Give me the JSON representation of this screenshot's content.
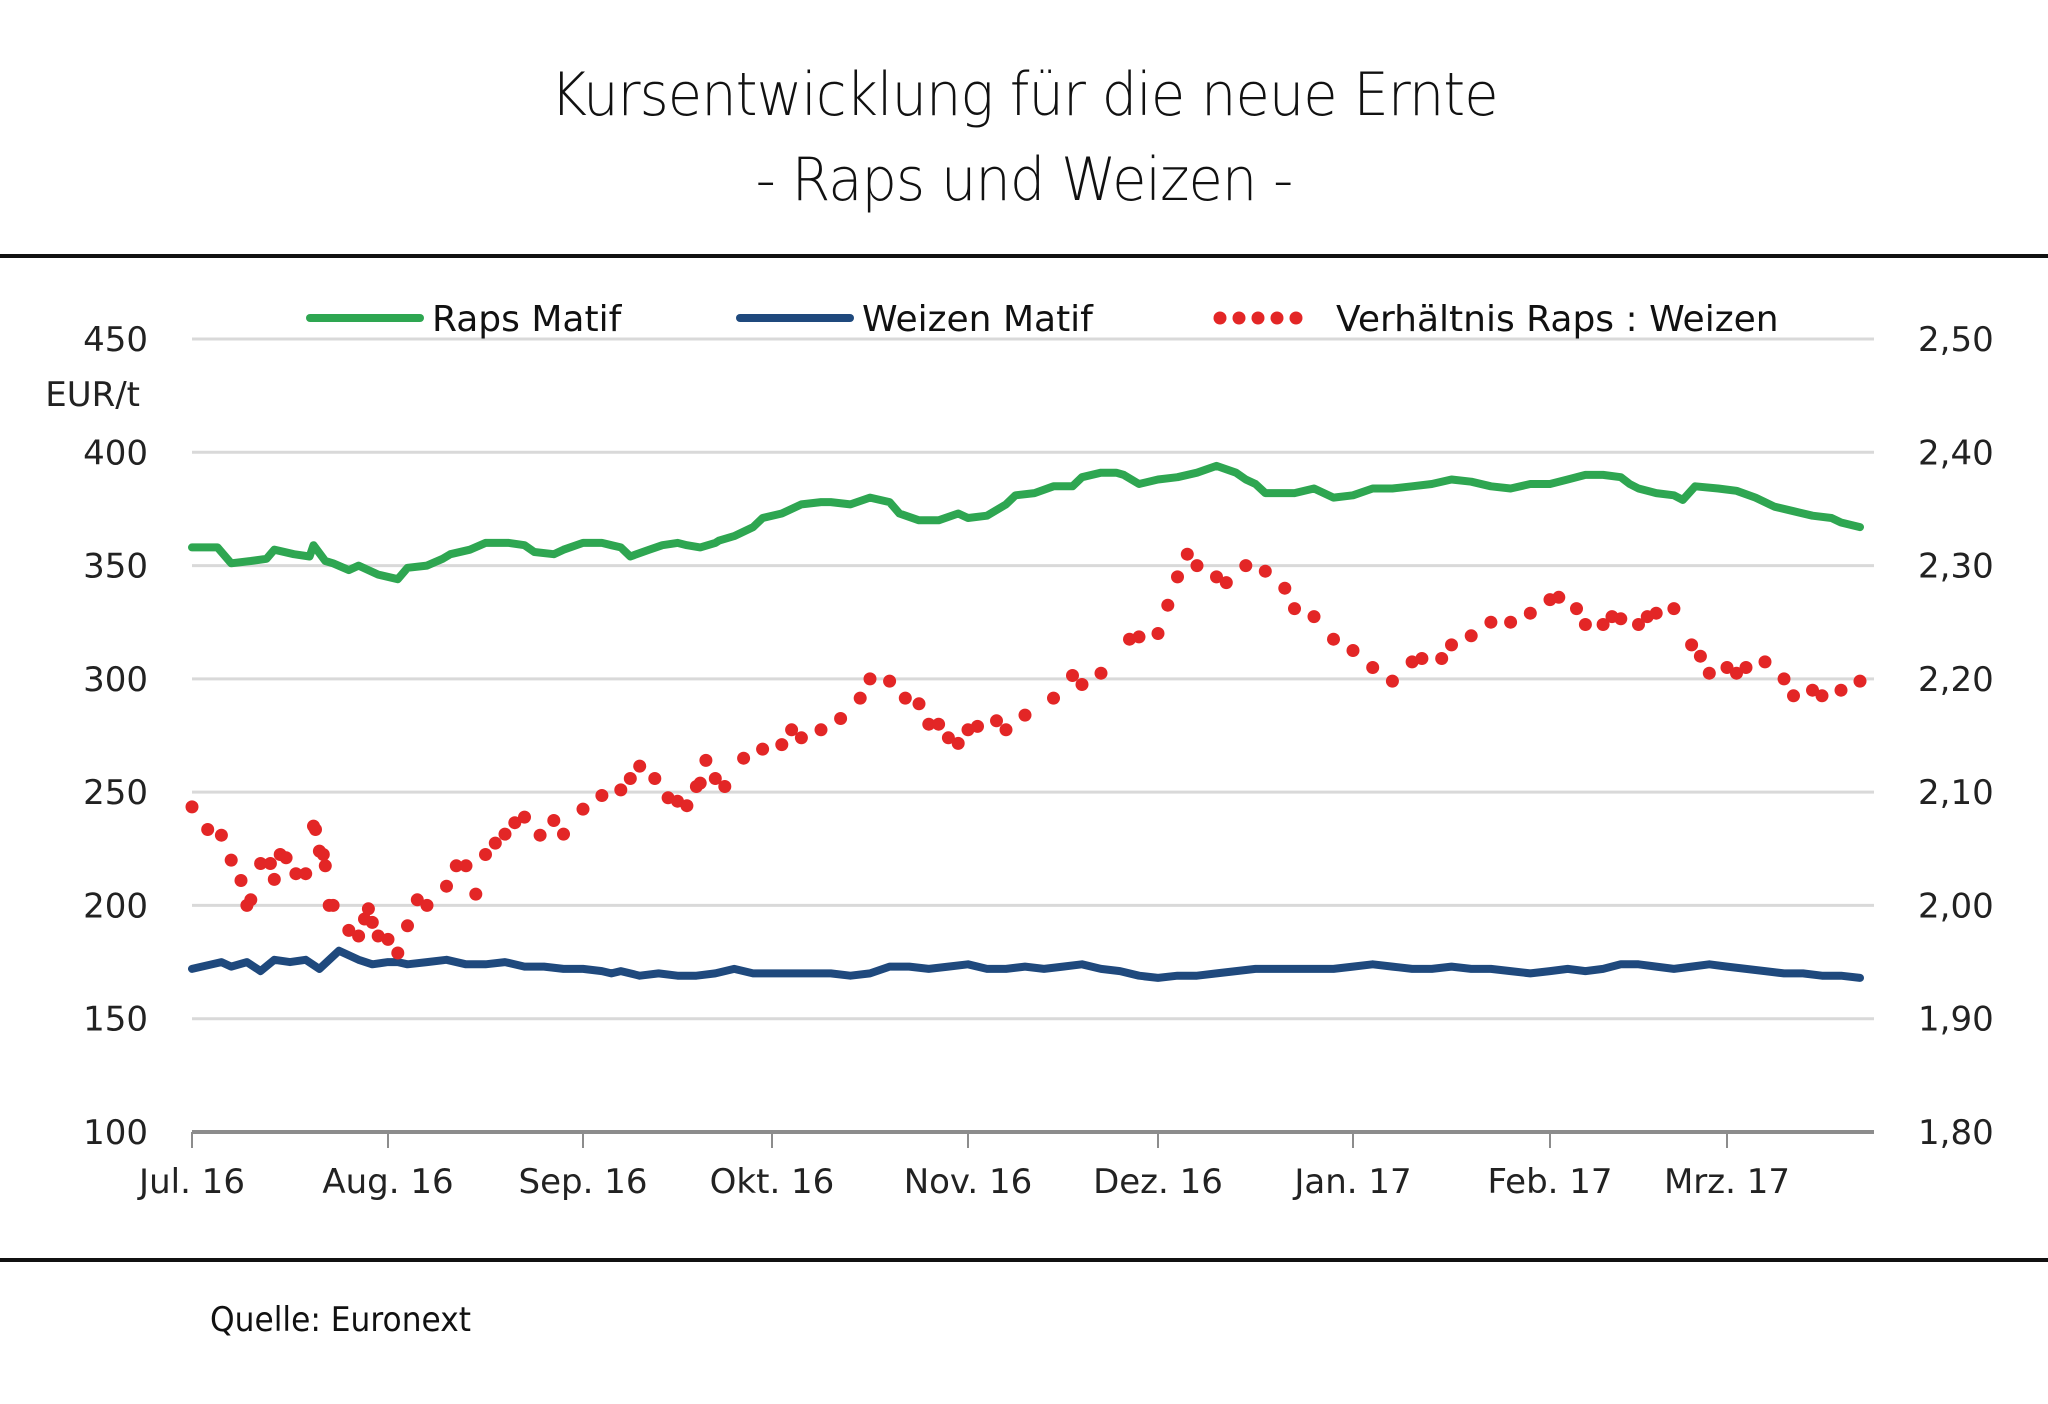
{
  "header": {
    "title_line1": "Kursentwicklung für die neue Ernte",
    "title_line2": "- Raps und Weizen -"
  },
  "footer": {
    "source": "Quelle: Euronext"
  },
  "colors": {
    "raps": "#2ea651",
    "weizen": "#1f497d",
    "ratio": "#e32626",
    "grid": "#d9d9d9",
    "axis": "#8c8c8c"
  },
  "chart_data": {
    "type": "line",
    "title": "Kursentwicklung für die neue Ernte - Raps und Weizen -",
    "ylabel": "EUR/t",
    "ylim": [
      100,
      450
    ],
    "yticks": [
      "100",
      "150",
      "200",
      "250",
      "300",
      "350",
      "400",
      "450"
    ],
    "y2lim": [
      1.8,
      2.5
    ],
    "y2ticks": [
      "1,80",
      "1,90",
      "2,00",
      "2,10",
      "2,20",
      "2,30",
      "2,40",
      "2,50"
    ],
    "grid": true,
    "legend_position": "top",
    "legend": [
      "Raps Matif",
      "Weizen Matif",
      "Verhältnis Raps : Weizen"
    ],
    "x_categories": [
      "Jul. 16",
      "Aug. 16",
      "Sep. 16",
      "Okt. 16",
      "Nov. 16",
      "Dez. 16",
      "Jan. 17",
      "Feb. 17",
      "Mrz. 17"
    ],
    "x_unit": "months since Jul. 16",
    "series": [
      {
        "name": "Raps Matif",
        "axis": "left",
        "style": "line",
        "x": [
          0,
          0.13,
          0.2,
          0.3,
          0.38,
          0.42,
          0.52,
          0.6,
          0.62,
          0.68,
          0.72,
          0.8,
          0.85,
          0.95,
          1.05,
          1.1,
          1.2,
          1.28,
          1.32,
          1.42,
          1.5,
          1.55,
          1.62,
          1.7,
          1.75,
          1.85,
          1.9,
          2.0,
          2.1,
          2.15,
          2.2,
          2.25,
          2.35,
          2.42,
          2.5,
          2.55,
          2.62,
          2.7,
          2.72,
          2.8,
          2.9,
          2.95,
          3.05,
          3.15,
          3.25,
          3.3,
          3.4,
          3.5,
          3.6,
          3.65,
          3.75,
          3.85,
          3.95,
          4.0,
          4.1,
          4.2,
          4.25,
          4.35,
          4.45,
          4.55,
          4.6,
          4.7,
          4.78,
          4.82,
          4.9,
          5.0,
          5.1,
          5.2,
          5.3,
          5.4,
          5.45,
          5.5,
          5.55,
          5.7,
          5.8,
          5.9,
          6.0,
          6.1,
          6.2,
          6.3,
          6.4,
          6.5,
          6.6,
          6.7,
          6.8,
          6.9,
          7.0,
          7.1,
          7.2,
          7.3,
          7.4,
          7.45,
          7.5,
          7.6,
          7.7,
          7.75,
          7.82,
          7.95,
          8.05,
          8.15,
          8.25,
          8.35,
          8.45,
          8.55,
          8.6,
          8.7
        ],
        "values": [
          358,
          358,
          351,
          352,
          353,
          357,
          355,
          354,
          359,
          352,
          351,
          348,
          350,
          346,
          344,
          349,
          350,
          353,
          355,
          357,
          360,
          360,
          360,
          359,
          356,
          355,
          357,
          360,
          360,
          359,
          358,
          354,
          357,
          359,
          360,
          359,
          358,
          360,
          361,
          363,
          367,
          371,
          373,
          377,
          378,
          378,
          377,
          380,
          378,
          373,
          370,
          370,
          373,
          371,
          372,
          377,
          381,
          382,
          385,
          385,
          389,
          391,
          391,
          390,
          386,
          388,
          389,
          391,
          394,
          391,
          388,
          386,
          382,
          382,
          384,
          380,
          381,
          384,
          384,
          385,
          386,
          388,
          387,
          385,
          384,
          386,
          386,
          388,
          390,
          390,
          389,
          386,
          384,
          382,
          381,
          379,
          385,
          384,
          383,
          380,
          376,
          374,
          372,
          371,
          369,
          367
        ]
      },
      {
        "name": "Weizen Matif",
        "axis": "left",
        "style": "line",
        "x": [
          0,
          0.15,
          0.2,
          0.28,
          0.35,
          0.42,
          0.5,
          0.58,
          0.65,
          0.75,
          0.85,
          0.92,
          1.0,
          1.05,
          1.1,
          1.2,
          1.3,
          1.4,
          1.5,
          1.6,
          1.7,
          1.8,
          1.9,
          2.0,
          2.1,
          2.15,
          2.2,
          2.3,
          2.4,
          2.5,
          2.6,
          2.7,
          2.8,
          2.9,
          3.0,
          3.1,
          3.2,
          3.3,
          3.4,
          3.5,
          3.6,
          3.7,
          3.8,
          3.9,
          4.0,
          4.1,
          4.2,
          4.3,
          4.4,
          4.5,
          4.6,
          4.7,
          4.8,
          4.9,
          5.0,
          5.1,
          5.2,
          5.3,
          5.4,
          5.5,
          5.6,
          5.7,
          5.8,
          5.9,
          6.0,
          6.1,
          6.2,
          6.3,
          6.4,
          6.5,
          6.6,
          6.7,
          6.8,
          6.9,
          7.0,
          7.1,
          7.2,
          7.3,
          7.4,
          7.5,
          7.6,
          7.7,
          7.8,
          7.9,
          8.0,
          8.1,
          8.2,
          8.3,
          8.4,
          8.5,
          8.6,
          8.7
        ],
        "values": [
          172,
          175,
          173,
          175,
          171,
          176,
          175,
          176,
          172,
          180,
          176,
          174,
          175,
          175,
          174,
          175,
          176,
          174,
          174,
          175,
          173,
          173,
          172,
          172,
          171,
          170,
          171,
          169,
          170,
          169,
          169,
          170,
          172,
          170,
          170,
          170,
          170,
          170,
          169,
          170,
          173,
          173,
          172,
          173,
          174,
          172,
          172,
          173,
          172,
          173,
          174,
          172,
          171,
          169,
          168,
          169,
          169,
          170,
          171,
          172,
          172,
          172,
          172,
          172,
          173,
          174,
          173,
          172,
          172,
          173,
          172,
          172,
          171,
          170,
          171,
          172,
          171,
          172,
          174,
          174,
          173,
          172,
          173,
          174,
          173,
          172,
          171,
          170,
          170,
          169,
          169,
          168
        ]
      },
      {
        "name": "Verhältnis Raps : Weizen",
        "axis": "right",
        "style": "dotted",
        "x": [
          0,
          0.08,
          0.15,
          0.2,
          0.25,
          0.28,
          0.3,
          0.35,
          0.4,
          0.42,
          0.45,
          0.48,
          0.53,
          0.58,
          0.62,
          0.63,
          0.65,
          0.67,
          0.68,
          0.7,
          0.72,
          0.8,
          0.85,
          0.88,
          0.9,
          0.92,
          0.95,
          1.0,
          1.05,
          1.1,
          1.15,
          1.2,
          1.3,
          1.35,
          1.4,
          1.45,
          1.5,
          1.55,
          1.6,
          1.65,
          1.7,
          1.78,
          1.85,
          1.9,
          2.0,
          2.1,
          2.2,
          2.25,
          2.3,
          2.38,
          2.45,
          2.5,
          2.55,
          2.6,
          2.62,
          2.65,
          2.7,
          2.75,
          2.85,
          2.95,
          3.05,
          3.1,
          3.15,
          3.25,
          3.35,
          3.45,
          3.5,
          3.6,
          3.68,
          3.75,
          3.8,
          3.85,
          3.9,
          3.95,
          4.0,
          4.05,
          4.15,
          4.2,
          4.3,
          4.45,
          4.55,
          4.6,
          4.7,
          4.85,
          4.9,
          5.0,
          5.05,
          5.1,
          5.15,
          5.2,
          5.3,
          5.35,
          5.45,
          5.55,
          5.65,
          5.7,
          5.8,
          5.9,
          6.0,
          6.1,
          6.2,
          6.3,
          6.35,
          6.45,
          6.5,
          6.6,
          6.7,
          6.8,
          6.9,
          7.0,
          7.05,
          7.15,
          7.2,
          7.3,
          7.35,
          7.4,
          7.5,
          7.55,
          7.6,
          7.7,
          7.8,
          7.85,
          7.9,
          8.0,
          8.05,
          8.1,
          8.2,
          8.3,
          8.35,
          8.45,
          8.5,
          8.6,
          8.7
        ],
        "values": [
          2.087,
          2.067,
          2.062,
          2.04,
          2.022,
          2.0,
          2.005,
          2.037,
          2.037,
          2.023,
          2.045,
          2.042,
          2.028,
          2.028,
          2.07,
          2.067,
          2.048,
          2.045,
          2.035,
          2.0,
          2.0,
          1.978,
          1.973,
          1.988,
          1.997,
          1.985,
          1.973,
          1.97,
          1.958,
          1.982,
          2.005,
          2.0,
          2.017,
          2.035,
          2.035,
          2.01,
          2.045,
          2.055,
          2.063,
          2.073,
          2.078,
          2.062,
          2.075,
          2.063,
          2.085,
          2.097,
          2.102,
          2.112,
          2.123,
          2.112,
          2.095,
          2.092,
          2.088,
          2.105,
          2.108,
          2.128,
          2.112,
          2.105,
          2.13,
          2.138,
          2.142,
          2.155,
          2.148,
          2.155,
          2.165,
          2.183,
          2.2,
          2.198,
          2.183,
          2.178,
          2.16,
          2.16,
          2.148,
          2.143,
          2.155,
          2.158,
          2.163,
          2.155,
          2.168,
          2.183,
          2.203,
          2.195,
          2.205,
          2.235,
          2.237,
          2.24,
          2.265,
          2.29,
          2.31,
          2.3,
          2.29,
          2.285,
          2.3,
          2.295,
          2.28,
          2.262,
          2.255,
          2.235,
          2.225,
          2.21,
          2.198,
          2.215,
          2.218,
          2.218,
          2.23,
          2.238,
          2.25,
          2.25,
          2.258,
          2.27,
          2.272,
          2.262,
          2.248,
          2.248,
          2.255,
          2.253,
          2.248,
          2.255,
          2.258,
          2.262,
          2.23,
          2.22,
          2.205,
          2.21,
          2.205,
          2.21,
          2.215,
          2.2,
          2.185,
          2.19,
          2.185,
          2.19,
          2.198
        ]
      }
    ]
  }
}
